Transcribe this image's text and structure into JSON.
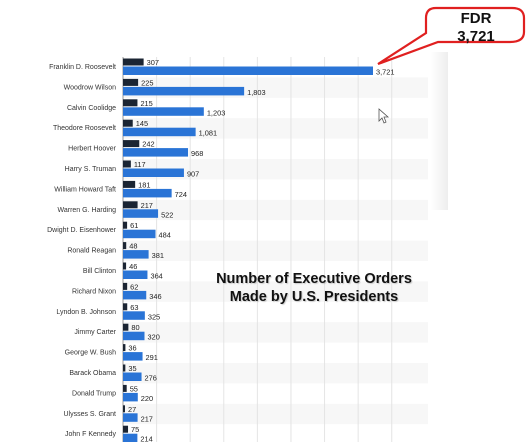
{
  "chart_data": {
    "type": "bar",
    "categories": [
      "Franklin D. Roosevelt",
      "Woodrow Wilson",
      "Calvin Coolidge",
      "Theodore Roosevelt",
      "Herbert Hoover",
      "Harry S. Truman",
      "William Howard Taft",
      "Warren G. Harding",
      "Dwight D. Eisenhower",
      "Ronald Reagan",
      "Bill Clinton",
      "Richard Nixon",
      "Lyndon B. Johnson",
      "Jimmy Carter",
      "George W. Bush",
      "Barack Obama",
      "Donald Trump",
      "Ulysses S. Grant",
      "John F Kennedy"
    ],
    "series": [
      {
        "values": [
          307,
          225,
          215,
          145,
          242,
          117,
          181,
          217,
          61,
          48,
          46,
          62,
          63,
          80,
          36,
          35,
          55,
          27,
          75
        ]
      },
      {
        "values": [
          3721,
          1803,
          1203,
          1081,
          968,
          907,
          724,
          522,
          484,
          381,
          364,
          346,
          325,
          320,
          291,
          276,
          220,
          217,
          214
        ]
      }
    ],
    "value_labels_series1": [
      "307",
      "225",
      "215",
      "145",
      "242",
      "117",
      "181",
      "217",
      "61",
      "48",
      "46",
      "62",
      "63",
      "80",
      "36",
      "35",
      "55",
      "27",
      "75"
    ],
    "value_labels_series2": [
      "3,721",
      "1,803",
      "1,203",
      "1,081",
      "968",
      "907",
      "724",
      "522",
      "484",
      "381",
      "364",
      "346",
      "325",
      "320",
      "291",
      "276",
      "220",
      "217",
      "214"
    ],
    "xlim": [
      0,
      4000
    ],
    "grid": true,
    "colors": {
      "series1": "#1b2533",
      "series2": "#2a74d6",
      "callout_border": "#e02020",
      "grid": "#e4e4e4"
    },
    "title": "Number of Executive Orders Made by U.S. Presidents",
    "annotation": {
      "line1": "FDR",
      "line2": "3,721"
    }
  },
  "cursor_icon": "arrow-cursor-icon"
}
